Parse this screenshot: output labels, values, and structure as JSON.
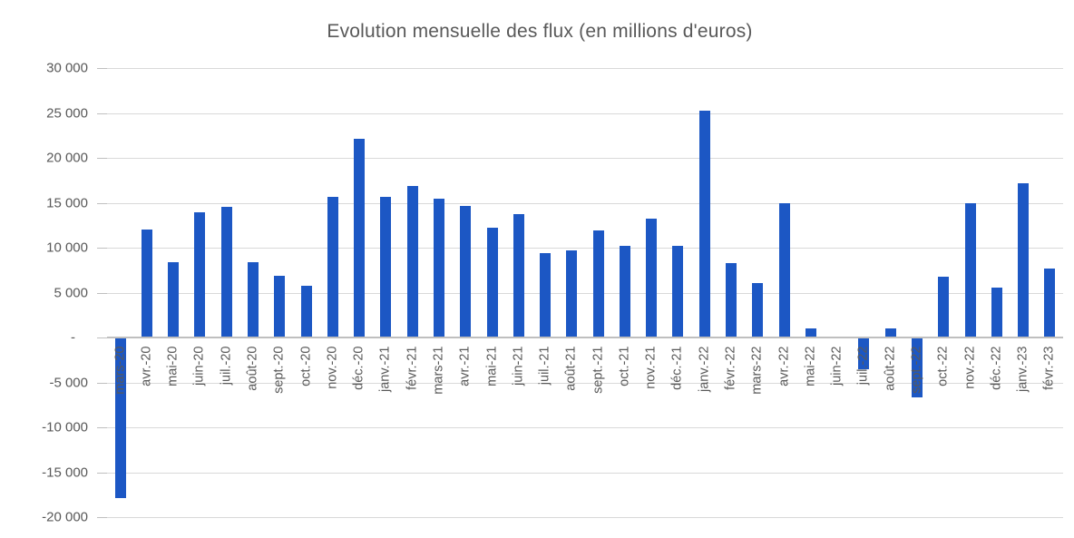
{
  "chart_data": {
    "type": "bar",
    "title": "Evolution mensuelle des flux (en millions d'euros)",
    "xlabel": "",
    "ylabel": "",
    "categories": [
      "mars-20",
      "avr.-20",
      "mai-20",
      "juin-20",
      "juil.-20",
      "août-20",
      "sept.-20",
      "oct.-20",
      "nov.-20",
      "déc.-20",
      "janv.-21",
      "févr.-21",
      "mars-21",
      "avr.-21",
      "mai-21",
      "juin-21",
      "juil.-21",
      "août-21",
      "sept.-21",
      "oct.-21",
      "nov.-21",
      "déc.-21",
      "janv.-22",
      "févr.-22",
      "mars-22",
      "avr.-22",
      "mai-22",
      "juin-22",
      "juil.-22",
      "août-22",
      "sept.-22",
      "oct.-22",
      "nov.-22",
      "déc.-22",
      "janv.-23",
      "févr.-23"
    ],
    "values": [
      -17900,
      12000,
      8400,
      13900,
      14500,
      8400,
      6900,
      5800,
      15700,
      22100,
      15700,
      16900,
      15500,
      14600,
      12200,
      13700,
      9400,
      9700,
      11900,
      10200,
      13200,
      10200,
      25300,
      8300,
      6100,
      15000,
      1000,
      0,
      -3500,
      1000,
      -6700,
      6800,
      15000,
      5600,
      17200,
      7700
    ],
    "ylim": [
      -20000,
      30000
    ],
    "ytick_interval": 5000,
    "ytick_labels": [
      "30 000",
      "25 000",
      "20 000",
      "15 000",
      "10 000",
      "5 000",
      "-",
      "-5 000",
      "-10 000",
      "-15 000",
      "-20 000"
    ],
    "grid": true,
    "legend": "none",
    "bar_color": "#1c57c4",
    "gridline_color": "#d9d9d9",
    "axis_color": "#bfbfbf",
    "text_color": "#595959"
  }
}
